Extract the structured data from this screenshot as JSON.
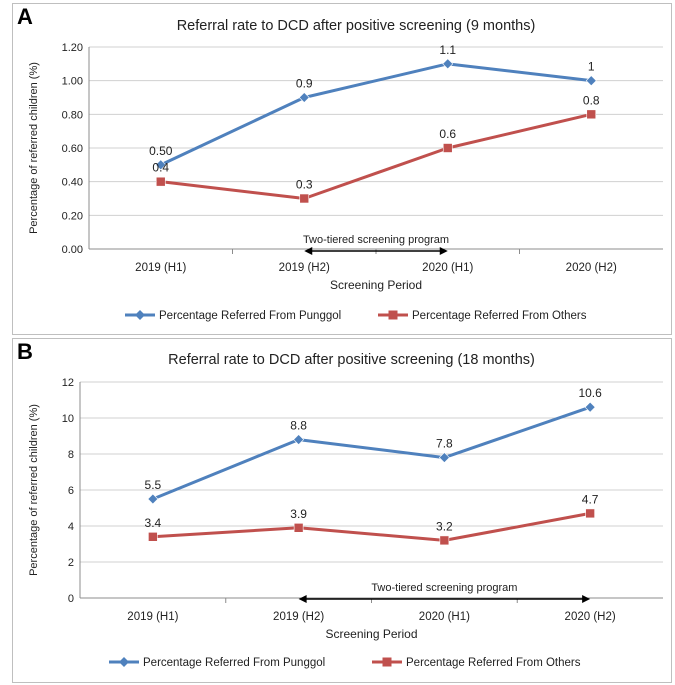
{
  "chart_data": [
    {
      "panel_letter": "A",
      "type": "line",
      "title": "Referral rate to DCD after positive screening (9 months)",
      "xlabel": "Screening Period",
      "ylabel": "Percentage of referred children (%)",
      "categories": [
        "2019 (H1)",
        "2019 (H2)",
        "2020 (H1)",
        "2020 (H2)"
      ],
      "ylim": [
        0,
        1.2
      ],
      "yticks": [
        "0.00",
        "0.20",
        "0.40",
        "0.60",
        "0.80",
        "1.00",
        "1.20"
      ],
      "grid": true,
      "legend_position": "bottom",
      "annotation": {
        "text": "Two-tiered screening program",
        "from": "2019 (H2)",
        "to": "2020 (H1)"
      },
      "series": [
        {
          "name": "Percentage Referred From Punggol",
          "color": "#4f81bd",
          "marker": "diamond",
          "values": [
            0.5,
            0.9,
            1.1,
            1.0
          ],
          "labels": [
            "0.50",
            "0.9",
            "1.1",
            "1"
          ]
        },
        {
          "name": "Percentage Referred From Others",
          "color": "#c0504d",
          "marker": "square",
          "values": [
            0.4,
            0.3,
            0.6,
            0.8
          ],
          "labels": [
            "0.4",
            "0.3",
            "0.6",
            "0.8"
          ]
        }
      ]
    },
    {
      "panel_letter": "B",
      "type": "line",
      "title": "Referral rate to DCD after positive screening (18 months)",
      "xlabel": "Screening Period",
      "ylabel": "Percentage of referred children (%)",
      "categories": [
        "2019 (H1)",
        "2019 (H2)",
        "2020 (H1)",
        "2020 (H2)"
      ],
      "ylim": [
        0,
        12
      ],
      "yticks": [
        "0",
        "2",
        "4",
        "6",
        "8",
        "10",
        "12"
      ],
      "grid": true,
      "legend_position": "bottom",
      "annotation": {
        "text": "Two-tiered screening program",
        "from": "2019 (H2)",
        "to": "2020 (H2)"
      },
      "series": [
        {
          "name": "Percentage Referred From Punggol",
          "color": "#4f81bd",
          "marker": "diamond",
          "values": [
            5.5,
            8.8,
            7.8,
            10.6
          ],
          "labels": [
            "5.5",
            "8.8",
            "7.8",
            "10.6"
          ]
        },
        {
          "name": "Percentage Referred From Others",
          "color": "#c0504d",
          "marker": "square",
          "values": [
            3.4,
            3.9,
            3.2,
            4.7
          ],
          "labels": [
            "3.4",
            "3.9",
            "3.2",
            "4.7"
          ]
        }
      ]
    }
  ]
}
